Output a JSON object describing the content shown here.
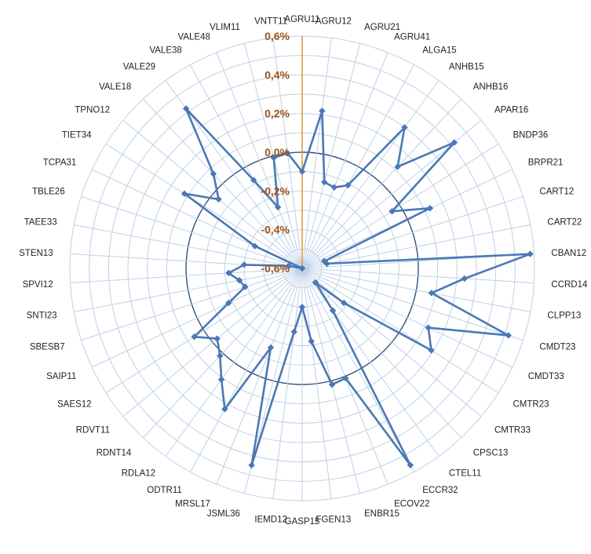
{
  "chart_data": {
    "type": "radar",
    "categories": [
      "AGRU11",
      "AGRU12",
      "AGRU21",
      "AGRU41",
      "ALGA15",
      "ANHB15",
      "ANHB16",
      "APAR16",
      "BNDP36",
      "BRPR21",
      "CART12",
      "CART22",
      "CBAN12",
      "CCRD14",
      "CLPP13",
      "CMDT23",
      "CMDT33",
      "CMTR23",
      "CMTR33",
      "CPSC13",
      "CTEL11",
      "ECCR32",
      "ECOV22",
      "ENBR15",
      "FGEN13",
      "GASP15",
      "IEMD12",
      "JSML36",
      "MRSL17",
      "ODTR11",
      "RDLA12",
      "RDNT14",
      "RDVT11",
      "SAES12",
      "SAIP11",
      "SBESB7",
      "SNTI23",
      "SPVI12",
      "STEN13",
      "TAEE33",
      "TBLE26",
      "TCPA31",
      "TIET34",
      "TPNO12",
      "VALE18",
      "VALE29",
      "VALE38",
      "VALE48",
      "VLIM11",
      "VNTT11"
    ],
    "series": [
      {
        "values": [
          -0.1,
          0.22,
          -0.14,
          -0.15,
          -0.11,
          0.3,
          0.12,
          0.42,
          -0.05,
          0.13,
          -0.48,
          -0.47,
          0.58,
          0.24,
          0.08,
          0.52,
          0.12,
          0.19,
          -0.32,
          -0.5,
          -0.33,
          0.56,
          0.01,
          0.02,
          -0.22,
          -0.4,
          -0.27,
          0.45,
          -0.16,
          0.23,
          0.11,
          0.02,
          -0.03,
          0.06,
          -0.18,
          -0.29,
          -0.27,
          -0.22,
          -0.3,
          -0.53,
          -0.6,
          -0.33,
          0.12,
          -0.04,
          0.07,
          0.42,
          -0.08,
          -0.26,
          -0.01,
          0.0
        ]
      }
    ],
    "value_ticks": [
      "0,6%",
      "0,4%",
      "0,2%",
      "0,0%",
      "-0,2%",
      "-0,4%",
      "-0,6%"
    ],
    "rmin": -0.6,
    "rmax": 0.6,
    "grid": true,
    "legend": "none"
  },
  "colors": {
    "series": "#4a78b5",
    "tick_label": "#a0521a",
    "grid": "#bdd1e8",
    "zero_ring": "#2f4f7f"
  }
}
